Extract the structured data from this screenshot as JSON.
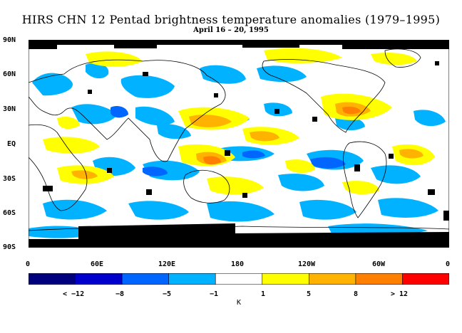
{
  "title": "HIRS CHN 12 Pentad brightness temperature anomalies (1979–1995)",
  "subtitle": "April 16 – 20, 1995",
  "y_labels": [
    "90N",
    "60N",
    "30N",
    "EQ",
    "30S",
    "60S",
    "90S"
  ],
  "x_labels": [
    "0",
    "60E",
    "120E",
    "180",
    "120W",
    "60W",
    "0"
  ],
  "colorbar": {
    "unit": "K",
    "labels": [
      "< −12",
      "−8",
      "−5",
      "−1",
      "1",
      "5",
      "8",
      "> 12"
    ],
    "colors": [
      "#00007f",
      "#0000cc",
      "#0066ff",
      "#00b2ff",
      "#ffffff",
      "#ffff00",
      "#ffb300",
      "#ff8000",
      "#ff0000"
    ]
  },
  "colors": {
    "missing": "#000000",
    "land_outline": "#000000"
  }
}
